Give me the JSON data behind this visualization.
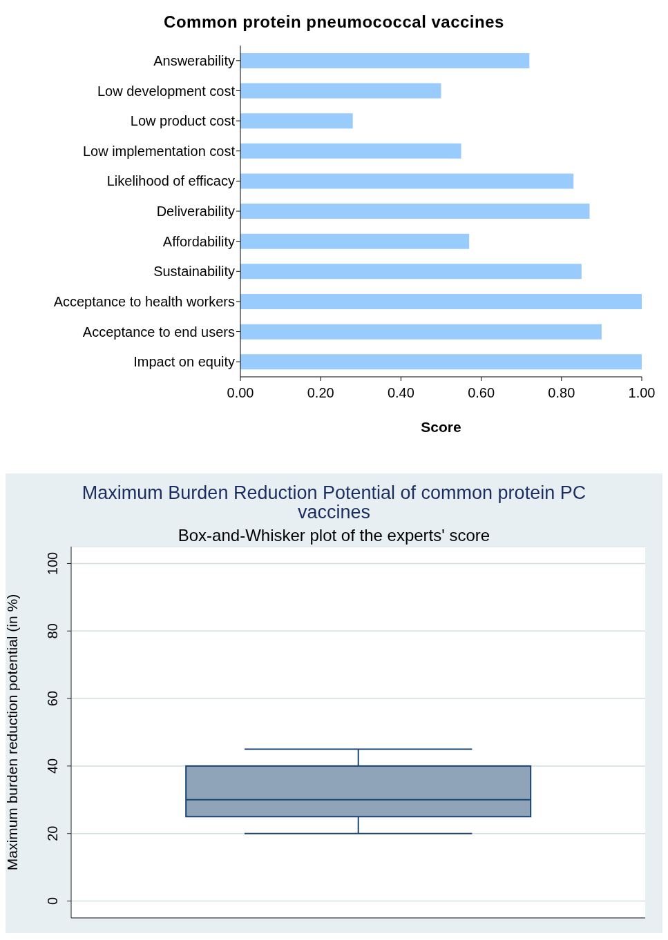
{
  "chart_data": [
    {
      "type": "bar",
      "orientation": "horizontal",
      "title": "Common protein pneumococcal vaccines",
      "xlabel": "Score",
      "categories": [
        "Answerability",
        "Low development cost",
        "Low product cost",
        "Low implementation cost",
        "Likelihood of efficacy",
        "Deliverability",
        "Affordability",
        "Sustainability",
        "Acceptance to health workers",
        "Acceptance to end users",
        "Impact on equity"
      ],
      "values": [
        0.72,
        0.5,
        0.28,
        0.55,
        0.83,
        0.87,
        0.57,
        0.85,
        1.0,
        0.9,
        1.0
      ],
      "color": "#99cbfd",
      "xlim": [
        0,
        1
      ],
      "xticks": [
        {
          "value": 0,
          "label": "0.00"
        },
        {
          "value": 0.2,
          "label": "0.20"
        },
        {
          "value": 0.4,
          "label": "0.40"
        },
        {
          "value": 0.6,
          "label": "0.60"
        },
        {
          "value": 0.8,
          "label": "0.80"
        },
        {
          "value": 1,
          "label": "1.00"
        }
      ],
      "grid": false
    },
    {
      "type": "box",
      "title": "Maximum Burden Reduction Potential of common protein PC vaccines",
      "subtitle": "Box-and-Whisker plot of the experts' score",
      "ylabel": "Maximum burden reduction potential (in %)",
      "categories": [
        null
      ],
      "boxes": [
        {
          "low": 20,
          "q1": 25,
          "median": 30,
          "q3": 40,
          "high": 45
        }
      ],
      "color": "#8fa3b9",
      "ylim": [
        -5,
        105
      ],
      "yticks": [
        0,
        20,
        40,
        60,
        80,
        100
      ],
      "grid": "y",
      "tick_labels": "y"
    }
  ]
}
